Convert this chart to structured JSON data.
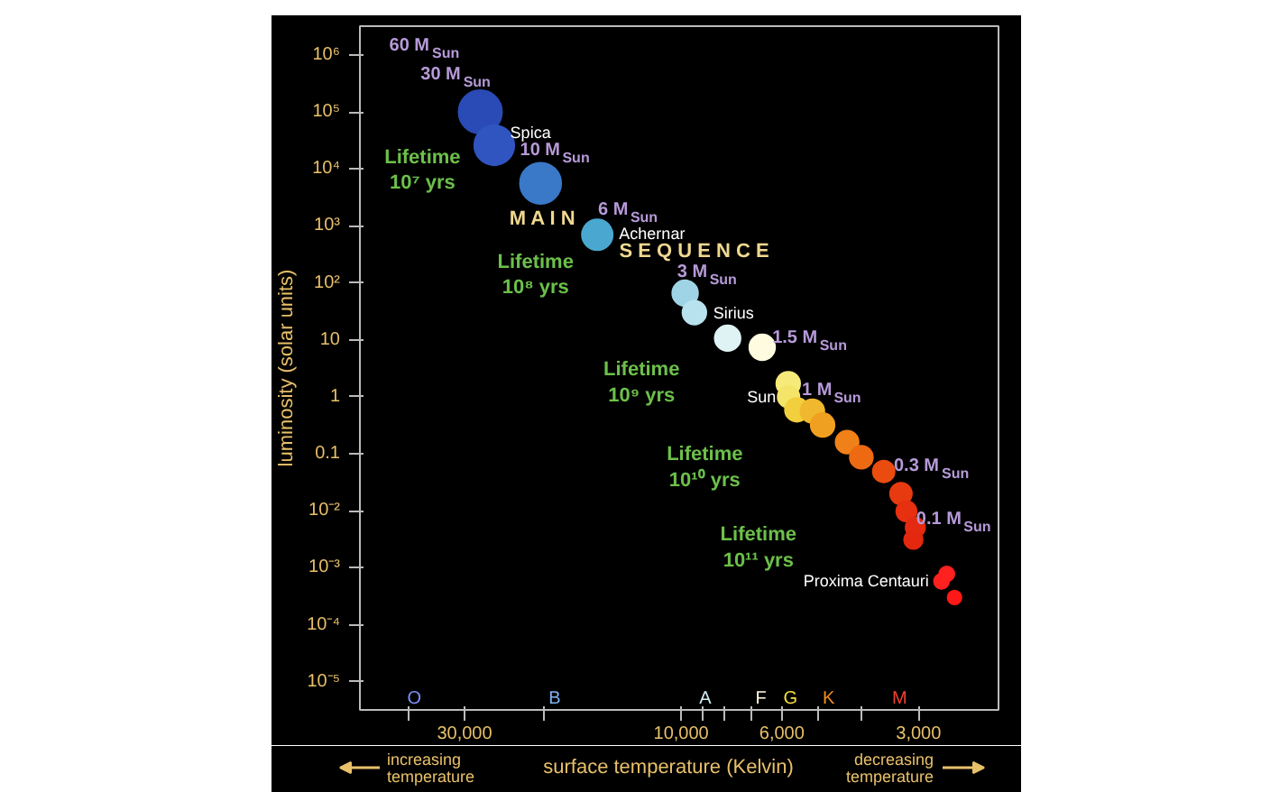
{
  "chart_data": {
    "type": "bubble",
    "xlabel": "surface temperature (Kelvin)",
    "ylabel": "luminosity (solar units)",
    "log": "xy",
    "grid": false,
    "marker": "circle",
    "x": [
      27700,
      25800,
      20400,
      15300,
      9800,
      9350,
      7900,
      6630,
      5810,
      5800,
      5560,
      5140,
      4880,
      4310,
      4010,
      3580,
      3280,
      3190,
      3050,
      3080,
      2670,
      2600,
      2500
    ],
    "values": [
      100000,
      26000,
      5600,
      700,
      66,
      30,
      10.7,
      7.4,
      1.7,
      1.0,
      0.59,
      0.56,
      0.32,
      0.16,
      0.087,
      0.049,
      0.02,
      0.0098,
      0.0051,
      0.0031,
      0.00058,
      0.00078,
      0.0003
    ],
    "sizes": [
      1.0,
      0.85,
      0.9,
      0.5,
      0.35,
      0.3,
      0.35,
      0.35,
      0.3,
      0.25,
      0.3,
      0.3,
      0.3,
      0.28,
      0.28,
      0.25,
      0.25,
      0.22,
      0.2,
      0.18,
      0.12,
      0.12,
      0.1
    ],
    "colors": [
      "#2a4bb5",
      "#3055c0",
      "#3a78c8",
      "#4aa8d0",
      "#9fd4e6",
      "#b8e2ee",
      "#dff2f4",
      "#fffbe0",
      "#f6ea7a",
      "#f4e56a",
      "#f2cf3c",
      "#f0b82e",
      "#f0a020",
      "#f08018",
      "#ee6a12",
      "#ea4c10",
      "#e83a10",
      "#e63010",
      "#e42a10",
      "#e42810",
      "#ff2020",
      "#ff2020",
      "#ff1818"
    ],
    "xlim": [
      51000,
      2000
    ],
    "xticks": [
      {
        "value": 40000,
        "label": null
      },
      {
        "value": 30000,
        "label": "30,000"
      },
      {
        "value": 20000,
        "label": null
      },
      {
        "value": 10000,
        "label": "10,000"
      },
      {
        "value": 9000,
        "label": null
      },
      {
        "value": 8000,
        "label": null
      },
      {
        "value": 7000,
        "label": null
      },
      {
        "value": 6000,
        "label": "6,000"
      },
      {
        "value": 5000,
        "label": null
      },
      {
        "value": 4000,
        "label": null
      },
      {
        "value": 3000,
        "label": "3,000"
      }
    ],
    "ylim": [
      3.2e-06,
      3200000.0
    ],
    "yticks": [
      {
        "value": 1000000.0,
        "label": "10⁶"
      },
      {
        "value": 100000.0,
        "label": "10⁵"
      },
      {
        "value": 10000.0,
        "label": "10⁴"
      },
      {
        "value": 1000.0,
        "label": "10³"
      },
      {
        "value": 100,
        "label": "10²"
      },
      10,
      1,
      0.1,
      {
        "value": 0.01,
        "label": "10⁻²"
      },
      {
        "value": 0.001,
        "label": "10⁻³"
      },
      {
        "value": 0.0001,
        "label": "10⁻⁴"
      },
      {
        "value": 1e-05,
        "label": "10⁻⁵"
      }
    ],
    "annotations": [
      "Lifetime\n10⁷ yrs",
      "Lifetime\n10⁸ yrs",
      "Lifetime\n10⁹ yrs",
      "Lifetime\n10¹⁰ yrs",
      "Lifetime\n10¹¹ yrs",
      "60 M$_{Sun}$",
      "30 M$_{Sun}$",
      {
        "text": "10 M$_{Sun}$",
        "x": 23700,
        "y": 21000
      },
      "6 M$_{Sun}$",
      {
        "text": "3 M$_{Sun}$",
        "x": 10200,
        "y": 150
      },
      {
        "text": "1.5 M$_{Sun}$",
        "x": 6300,
        "y": 10.7
      },
      {
        "text": "1 M$_{Sun}$",
        "x": 5420,
        "y": 1.3
      },
      {
        "text": "0.3 M$_{Sun}$",
        "x": 3400,
        "y": 0.06
      },
      {
        "text": "0.1 M$_{Sun}$",
        "x": 2900,
        "y": 0.0069
      },
      {
        "text": "Spica",
        "x": 23800,
        "y": 44000
      },
      {
        "text": "Achernar",
        "x": 13700,
        "y": 740
      },
      {
        "text": "Sirius",
        "x": 8500,
        "y": 30
      },
      {
        "text": "Sun",
        "x": 5800,
        "y": 1.0
      },
      {
        "text": "Proxima Centauri",
        "x": 2670,
        "y": 0.00058
      },
      "M A I N",
      "S E Q U E N C E",
      "O",
      "B",
      "A",
      "F",
      "G",
      "K",
      "M",
      "increasing\ntemperature",
      "decreasing\ntemperature"
    ]
  }
}
